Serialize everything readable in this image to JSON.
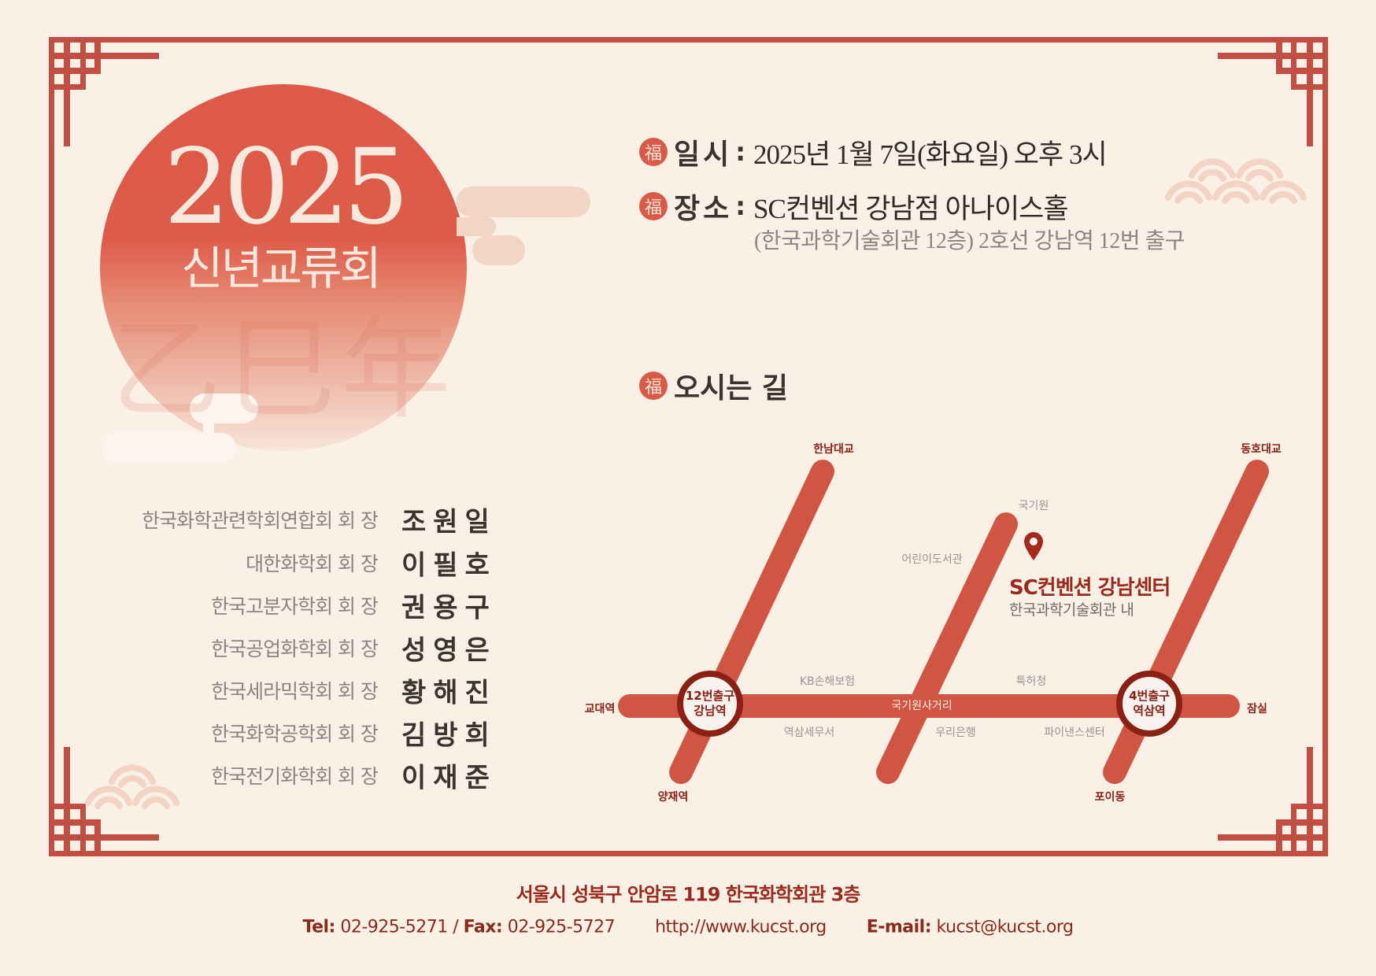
{
  "colors": {
    "background": "#faf0e5",
    "frame": "#c24d42",
    "accent": "#d85a47",
    "dark_red": "#8b2015",
    "text": "#3a3431",
    "muted": "#8a8583"
  },
  "hero": {
    "year": "2025",
    "title": "신년교류회",
    "watermark": "乙巳年"
  },
  "info": {
    "icon_glyph": "福",
    "date": {
      "label": "일시",
      "value": "2025년 1월 7일(화요일) 오후 3시"
    },
    "place": {
      "label": "장소",
      "value": "SC컨벤션 강남점 아나이스홀",
      "sub": "(한국과학기술회관 12층) 2호선 강남역 12번 출구"
    },
    "directions": {
      "label": "오시는 길"
    }
  },
  "hosts": [
    {
      "org": "한국화학관련학회연합회 회 장",
      "name": "조원일"
    },
    {
      "org": "대한화학회 회 장",
      "name": "이필호"
    },
    {
      "org": "한국고분자학회 회 장",
      "name": "권용구"
    },
    {
      "org": "한국공업화학회 회 장",
      "name": "성영은"
    },
    {
      "org": "한국세라믹학회 회 장",
      "name": "황해진"
    },
    {
      "org": "한국화학공학회 회 장",
      "name": "김방희"
    },
    {
      "org": "한국전기화학회 회 장",
      "name": "이재준"
    }
  ],
  "map": {
    "places": {
      "hannam": "한남대교",
      "dongho": "동호대교",
      "gyodae": "교대역",
      "jamsil": "잠실",
      "yangjae": "양재역",
      "poi": "포이동"
    },
    "landmarks": {
      "kukkiwon": "국기원",
      "library": "어린이도서관",
      "kb": "KB손해보험",
      "patent": "특허청",
      "crossroad": "국기원사거리",
      "tax": "역삼세무서",
      "woori": "우리은행",
      "finance": "파이낸스센터"
    },
    "stations": [
      {
        "exit": "12번출구",
        "name": "강남역"
      },
      {
        "exit": "4번출구",
        "name": "역삼역"
      }
    ],
    "venue": {
      "name": "SC컨벤션 강남센터",
      "sub": "한국과학기술회관 내",
      "icon": "map-pin-icon"
    }
  },
  "footer": {
    "address": "서울시 성북구 안암로 119 한국화학회관 3층",
    "tel_label": "Tel:",
    "tel": "02-925-5271",
    "sep": "/",
    "fax_label": "Fax:",
    "fax": "02-925-5727",
    "url": "http://www.kucst.org",
    "email_label": "E-mail:",
    "email": "kucst@kucst.org"
  }
}
